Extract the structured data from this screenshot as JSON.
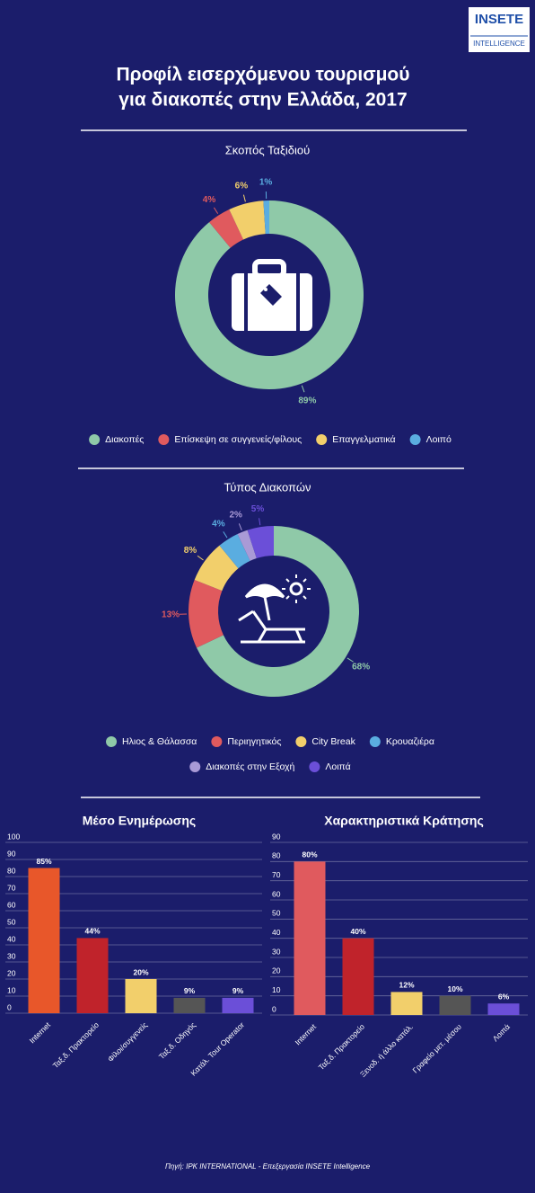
{
  "logo": {
    "name": "INSETE",
    "sub": "INTELLIGENCE"
  },
  "title": [
    "Προφίλ εισερχόμενου τουρισμού",
    "για διακοπές στην Ελλάδα, 2017"
  ],
  "source": "Πηγή: IPK INTERNATIONAL - Επεξεργασία INSETE Intelligence",
  "chart_data": [
    {
      "type": "pie",
      "title": "Σκοπός Ταξιδιού",
      "categories": [
        "Διακοπές",
        "Επίσκεψη σε συγγενείς/φίλους",
        "Επαγγελματικά",
        "Λοιπό"
      ],
      "values": [
        89,
        4,
        6,
        1
      ],
      "value_labels": [
        "89%",
        "4%",
        "6%",
        "1%"
      ],
      "colors": [
        "#8fc9a8",
        "#e05a5e",
        "#f2cf6b",
        "#5aade0"
      ]
    },
    {
      "type": "pie",
      "title": "Τύπος Διακοπών",
      "categories": [
        "Ηλιος & Θάλασσα",
        "Περιηγητικός",
        "City Break",
        "Κρουαζιέρα",
        "Διακοπές στην Εξοχή",
        "Λοιπά"
      ],
      "values": [
        68,
        13,
        8,
        4,
        2,
        5
      ],
      "value_labels": [
        "68%",
        "13%",
        "8%",
        "4%",
        "2%",
        "5%"
      ],
      "colors": [
        "#8fc9a8",
        "#e05a5e",
        "#f2cf6b",
        "#5aade0",
        "#a99ad6",
        "#6b4fd8"
      ]
    },
    {
      "type": "bar",
      "title": "Μέσο Ενημέρωσης",
      "categories": [
        "Internet",
        "Ταξ.δ. Πρακτορείο",
        "Φίλοι/συγγενείς",
        "Ταξ.δ. Οδηγός",
        "Κατάλ. Tour Operator"
      ],
      "values": [
        85,
        44,
        20,
        9,
        9
      ],
      "value_labels": [
        "85%",
        "44%",
        "20%",
        "9%",
        "9%"
      ],
      "colors": [
        "#e8572a",
        "#c0232b",
        "#f2cf6b",
        "#555555",
        "#6b4fd8"
      ],
      "ylim": [
        0,
        100
      ],
      "yticks": [
        0,
        10,
        20,
        30,
        40,
        50,
        60,
        70,
        80,
        90,
        100
      ],
      "grid": true
    },
    {
      "type": "bar",
      "title": "Χαρακτηριστικά Κράτησης",
      "categories": [
        "Internet",
        "Ταξ.δ. Πρακτορείο",
        "Ξενοδ. ή άλλο κατάλ.",
        "Γραφείο μετ. μέσου",
        "Λοιπά"
      ],
      "values": [
        80,
        40,
        12,
        10,
        6
      ],
      "value_labels": [
        "80%",
        "40%",
        "12%",
        "10%",
        "6%"
      ],
      "colors": [
        "#e05a5e",
        "#c0232b",
        "#f2cf6b",
        "#555555",
        "#6b4fd8"
      ],
      "ylim": [
        0,
        90
      ],
      "yticks": [
        0,
        10,
        20,
        30,
        40,
        50,
        60,
        70,
        80,
        90
      ],
      "grid": true
    }
  ]
}
